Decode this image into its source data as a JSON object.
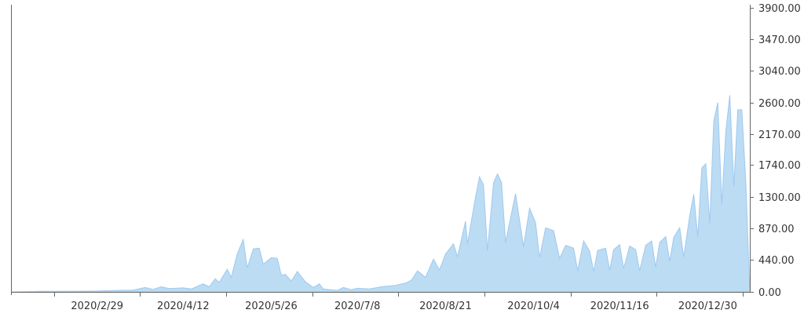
{
  "chart_data": {
    "type": "area",
    "title": "",
    "xlabel": "",
    "ylabel": "",
    "x_tick_labels": [
      "2020/2/29",
      "2020/4/12",
      "2020/5/26",
      "2020/7/8",
      "2020/8/21",
      "2020/10/4",
      "2020/11/16",
      "2020/12/30"
    ],
    "y_tick_labels": [
      "0.00",
      "440.00",
      "870.00",
      "1300.00",
      "1740.00",
      "2170.00",
      "2600.00",
      "3040.00",
      "3470.00",
      "3900.00"
    ],
    "ylim": [
      0,
      3900
    ],
    "xlim": [
      "2020/1/17",
      "2021/1/20"
    ],
    "y_axis_position": "right",
    "grid": false,
    "legend": "none",
    "series": [
      {
        "color": "#9fc9ee",
        "fill": "#bcdcf4",
        "points": [
          [
            "2020/1/17",
            0
          ],
          [
            "2020/2/1",
            8
          ],
          [
            "2020/2/20",
            10
          ],
          [
            "2020/2/29",
            12
          ],
          [
            "2020/3/10",
            20
          ],
          [
            "2020/3/18",
            25
          ],
          [
            "2020/3/24",
            60
          ],
          [
            "2020/3/28",
            35
          ],
          [
            "2020/4/1",
            70
          ],
          [
            "2020/4/5",
            45
          ],
          [
            "2020/4/12",
            55
          ],
          [
            "2020/4/16",
            40
          ],
          [
            "2020/4/22",
            110
          ],
          [
            "2020/4/25",
            70
          ],
          [
            "2020/4/28",
            180
          ],
          [
            "2020/4/30",
            130
          ],
          [
            "2020/5/4",
            310
          ],
          [
            "2020/5/6",
            200
          ],
          [
            "2020/5/9",
            520
          ],
          [
            "2020/5/12",
            720
          ],
          [
            "2020/5/14",
            330
          ],
          [
            "2020/5/17",
            590
          ],
          [
            "2020/5/20",
            600
          ],
          [
            "2020/5/22",
            380
          ],
          [
            "2020/5/26",
            470
          ],
          [
            "2020/5/29",
            460
          ],
          [
            "2020/5/31",
            230
          ],
          [
            "2020/6/2",
            240
          ],
          [
            "2020/6/5",
            150
          ],
          [
            "2020/6/8",
            280
          ],
          [
            "2020/6/12",
            140
          ],
          [
            "2020/6/16",
            60
          ],
          [
            "2020/6/19",
            110
          ],
          [
            "2020/6/21",
            40
          ],
          [
            "2020/6/28",
            20
          ],
          [
            "2020/7/1",
            60
          ],
          [
            "2020/7/5",
            30
          ],
          [
            "2020/7/8",
            50
          ],
          [
            "2020/7/14",
            40
          ],
          [
            "2020/7/20",
            70
          ],
          [
            "2020/7/27",
            90
          ],
          [
            "2020/8/1",
            120
          ],
          [
            "2020/8/4",
            160
          ],
          [
            "2020/8/7",
            290
          ],
          [
            "2020/8/11",
            200
          ],
          [
            "2020/8/15",
            450
          ],
          [
            "2020/8/18",
            300
          ],
          [
            "2020/8/21",
            520
          ],
          [
            "2020/8/25",
            660
          ],
          [
            "2020/8/27",
            480
          ],
          [
            "2020/8/31",
            970
          ],
          [
            "2020/9/1",
            660
          ],
          [
            "2020/9/5",
            1300
          ],
          [
            "2020/9/7",
            1580
          ],
          [
            "2020/9/9",
            1470
          ],
          [
            "2020/9/11",
            560
          ],
          [
            "2020/9/14",
            1500
          ],
          [
            "2020/9/16",
            1620
          ],
          [
            "2020/9/18",
            1500
          ],
          [
            "2020/9/20",
            680
          ],
          [
            "2020/9/25",
            1350
          ],
          [
            "2020/9/29",
            620
          ],
          [
            "2020/10/2",
            1150
          ],
          [
            "2020/10/5",
            950
          ],
          [
            "2020/10/7",
            470
          ],
          [
            "2020/10/10",
            880
          ],
          [
            "2020/10/14",
            840
          ],
          [
            "2020/10/17",
            460
          ],
          [
            "2020/10/20",
            640
          ],
          [
            "2020/10/24",
            600
          ],
          [
            "2020/10/26",
            290
          ],
          [
            "2020/10/29",
            700
          ],
          [
            "2020/11/1",
            560
          ],
          [
            "2020/11/3",
            280
          ],
          [
            "2020/11/5",
            570
          ],
          [
            "2020/11/9",
            600
          ],
          [
            "2020/11/11",
            300
          ],
          [
            "2020/11/13",
            580
          ],
          [
            "2020/11/16",
            650
          ],
          [
            "2020/11/18",
            320
          ],
          [
            "2020/11/21",
            630
          ],
          [
            "2020/11/24",
            580
          ],
          [
            "2020/11/26",
            290
          ],
          [
            "2020/11/29",
            640
          ],
          [
            "2020/12/2",
            700
          ],
          [
            "2020/12/4",
            340
          ],
          [
            "2020/12/6",
            680
          ],
          [
            "2020/12/9",
            760
          ],
          [
            "2020/12/11",
            420
          ],
          [
            "2020/12/13",
            750
          ],
          [
            "2020/12/16",
            880
          ],
          [
            "2020/12/18",
            480
          ],
          [
            "2020/12/21",
            1050
          ],
          [
            "2020/12/23",
            1340
          ],
          [
            "2020/12/25",
            750
          ],
          [
            "2020/12/27",
            1700
          ],
          [
            "2020/12/29",
            1760
          ],
          [
            "2020/12/31",
            940
          ],
          [
            "2021/1/2",
            2350
          ],
          [
            "2021/1/4",
            2600
          ],
          [
            "2021/1/6",
            1200
          ],
          [
            "2021/1/8",
            2200
          ],
          [
            "2021/1/10",
            2700
          ],
          [
            "2021/1/12",
            1450
          ],
          [
            "2021/1/14",
            2500
          ],
          [
            "2021/1/16",
            2500
          ],
          [
            "2021/1/18",
            1500
          ],
          [
            "2021/1/20",
            0
          ]
        ]
      }
    ]
  }
}
